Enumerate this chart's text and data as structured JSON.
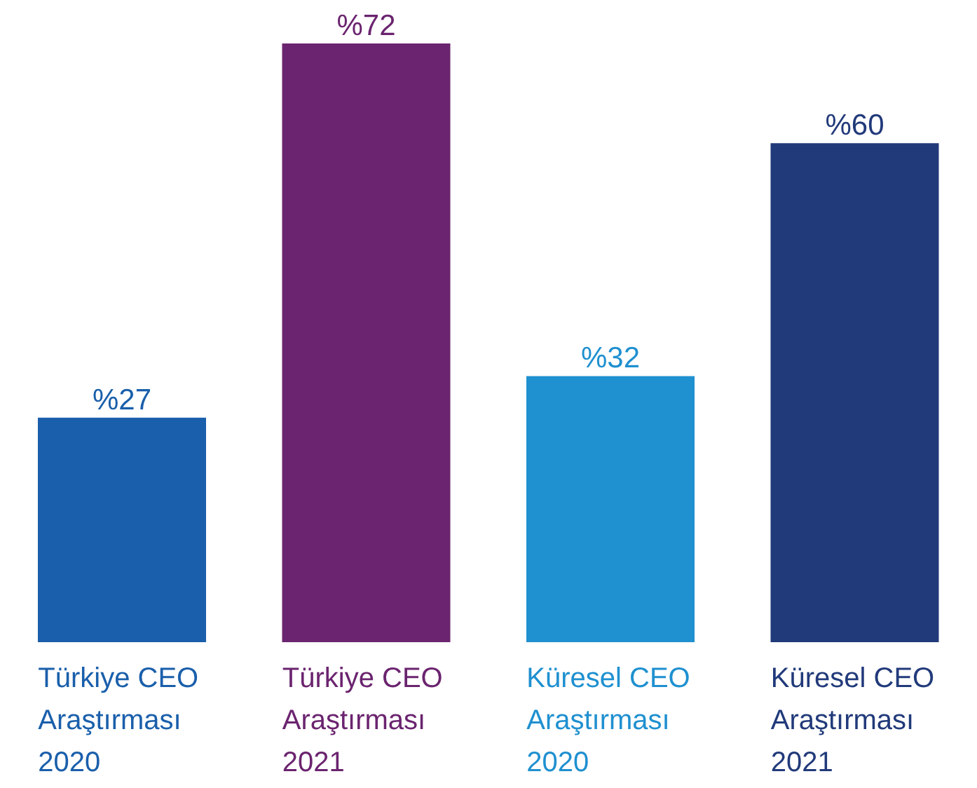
{
  "chart_data": {
    "type": "bar",
    "categories": [
      "Türkiye CEO Araştırması 2020",
      "Türkiye CEO Araştırması 2021",
      "Küresel CEO Araştırması 2020",
      "Küresel CEO Araştırması 2021"
    ],
    "values": [
      27,
      72,
      32,
      60
    ],
    "colors": [
      "#1a5fab",
      "#6b246f",
      "#1f90d0",
      "#213a7a"
    ],
    "value_labels": [
      "%27",
      "%72",
      "%32",
      "%60"
    ]
  }
}
